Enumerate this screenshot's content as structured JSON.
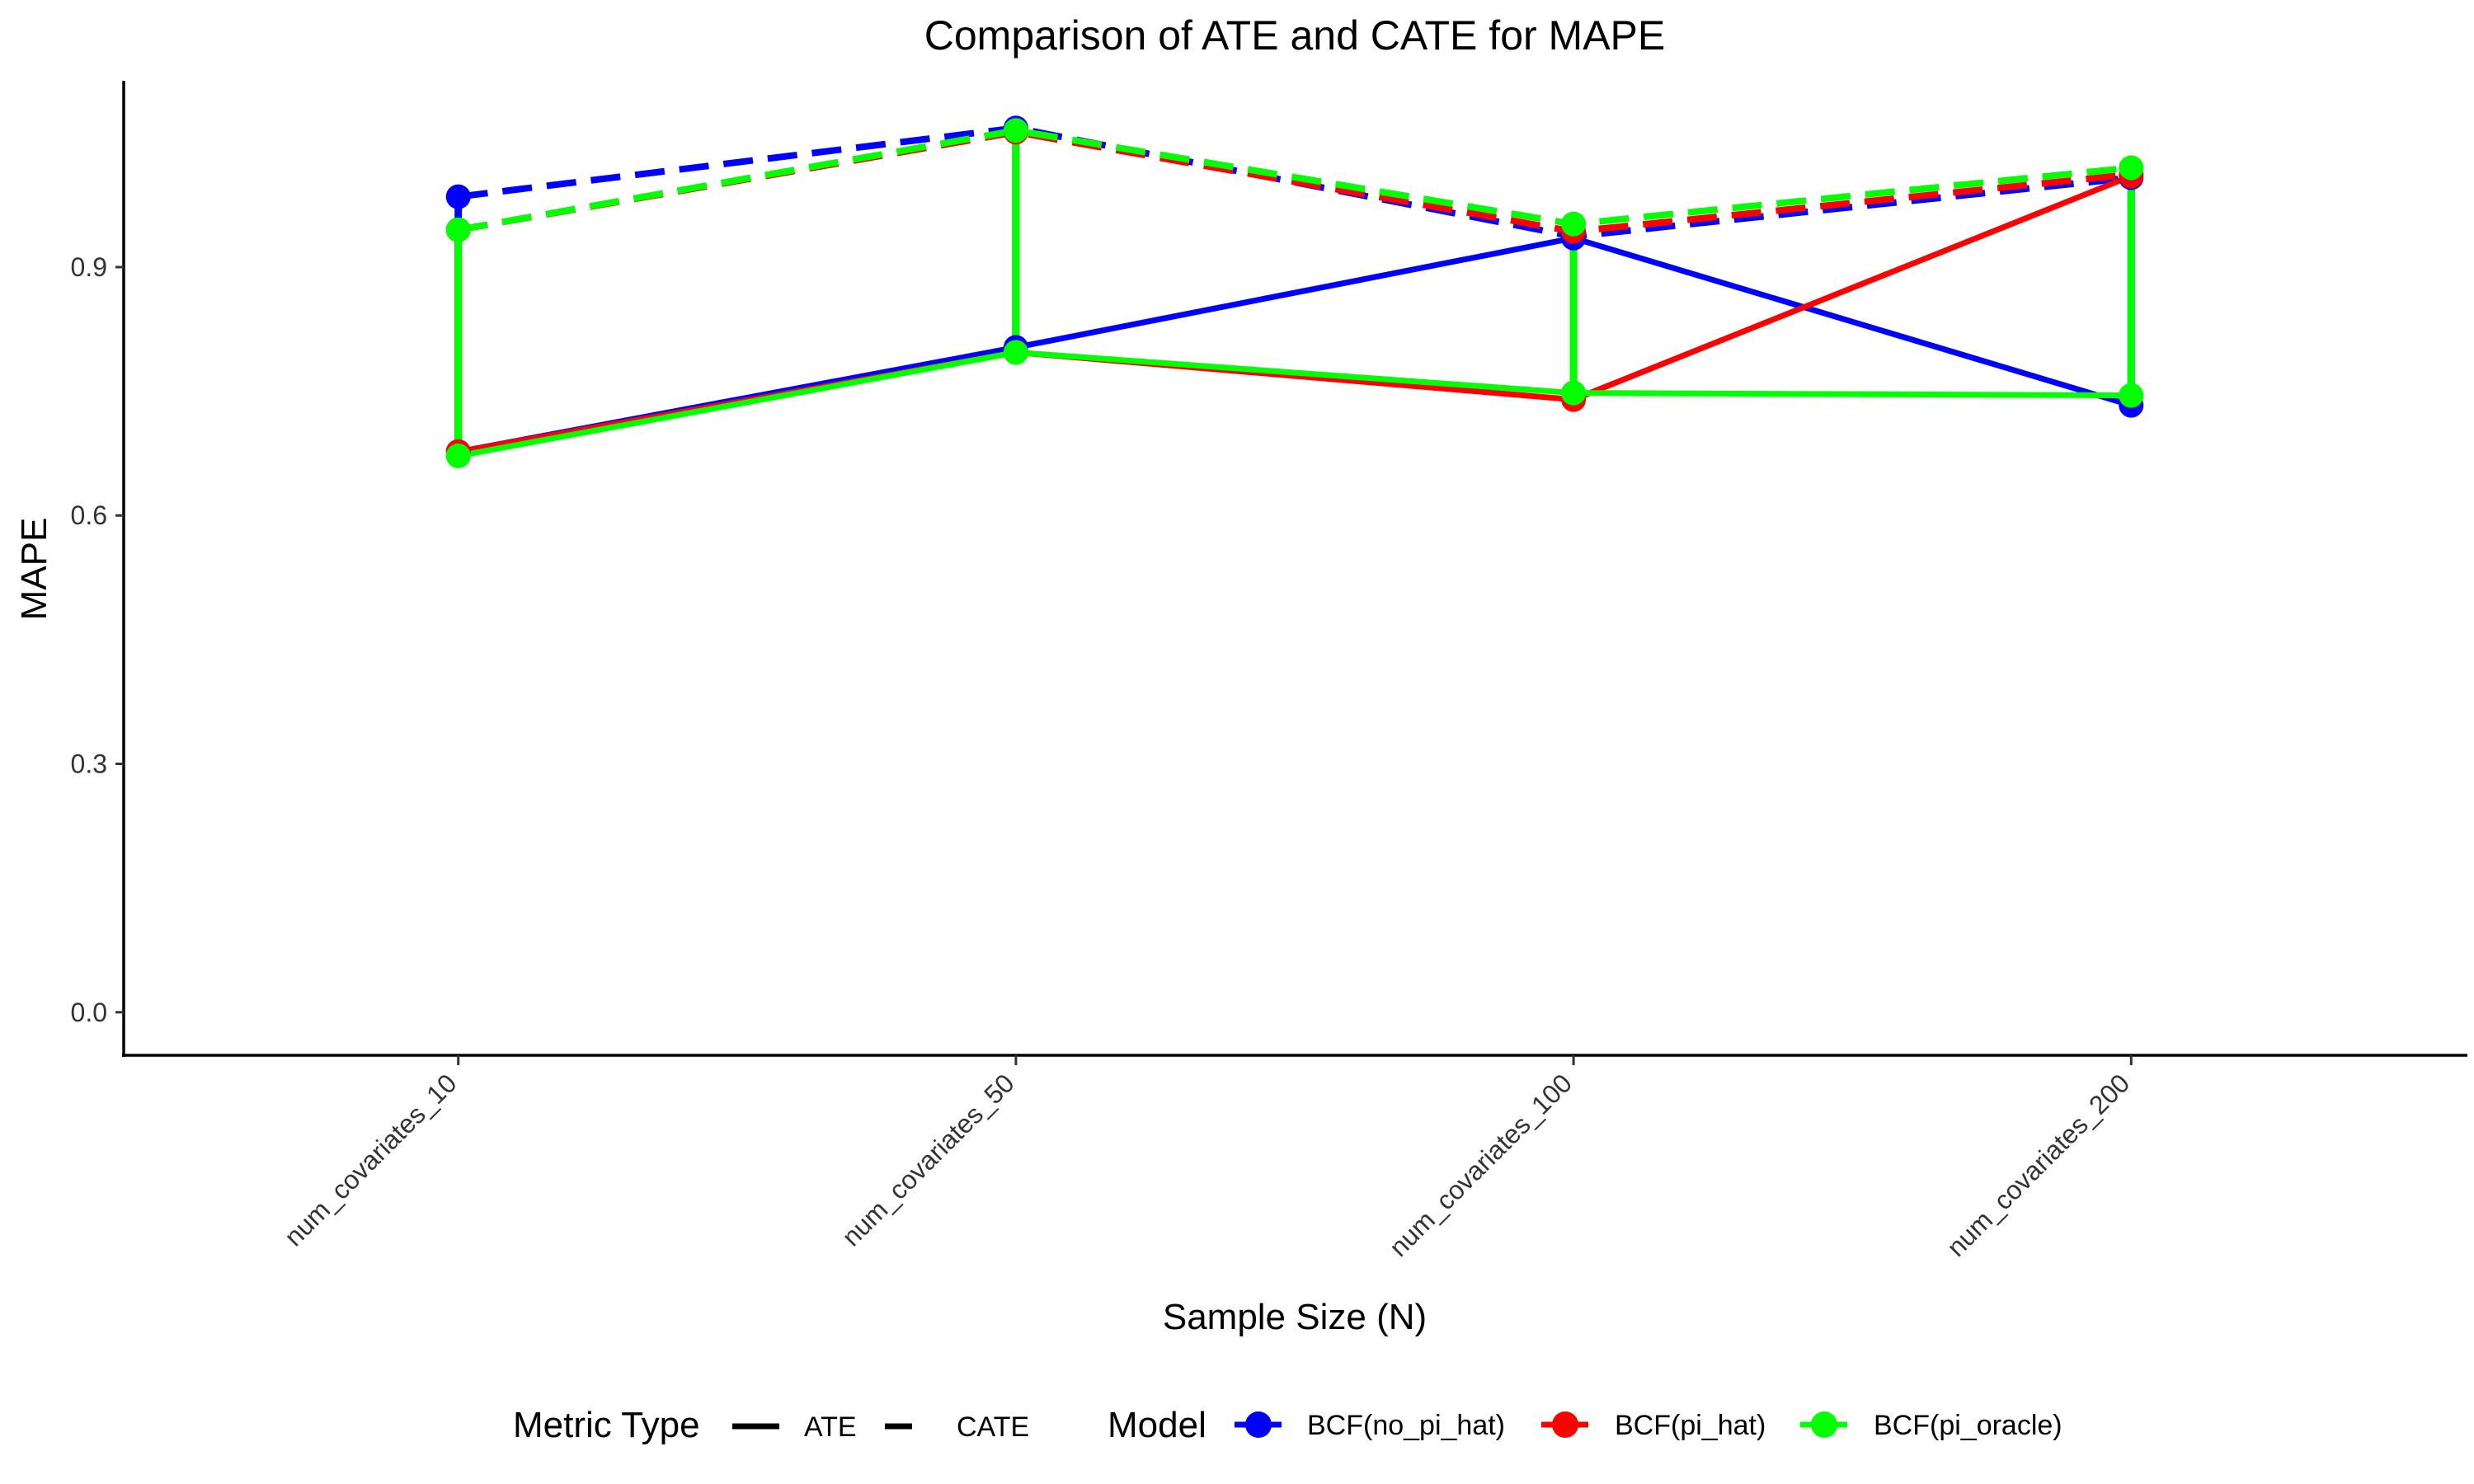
{
  "chart_data": {
    "type": "line",
    "title": "Comparison of ATE and CATE for MAPE",
    "xlabel": "Sample Size (N)",
    "ylabel": "MAPE",
    "categories": [
      "num_covariates_10",
      "num_covariates_50",
      "num_covariates_100",
      "num_covariates_200"
    ],
    "yticks": [
      "0.0",
      "0.3",
      "0.6",
      "0.9"
    ],
    "ytick_values": [
      0.0,
      0.3,
      0.6,
      0.9
    ],
    "ylim": [
      -0.052,
      1.125
    ],
    "grid": false,
    "legend_position": "bottom",
    "metric_legend": {
      "title": "Metric Type",
      "items": [
        {
          "label": "ATE",
          "dash": "solid"
        },
        {
          "label": "CATE",
          "dash": "dashed"
        }
      ]
    },
    "model_legend": {
      "title": "Model",
      "items": [
        {
          "label": "BCF(no_pi_hat)",
          "color": "#0000ff"
        },
        {
          "label": "BCF(pi_hat)",
          "color": "#ff0000"
        },
        {
          "label": "BCF(pi_oracle)",
          "color": "#00ff00"
        }
      ]
    },
    "series": [
      {
        "model": "BCF(no_pi_hat)",
        "metric": "ATE",
        "color": "#0000ff",
        "values": [
          0.677,
          0.803,
          0.935,
          0.733
        ]
      },
      {
        "model": "BCF(no_pi_hat)",
        "metric": "CATE",
        "color": "#0000ff",
        "values": [
          0.985,
          1.068,
          0.937,
          1.008
        ]
      },
      {
        "model": "BCF(pi_hat)",
        "metric": "ATE",
        "color": "#ff0000",
        "values": [
          0.677,
          0.797,
          0.74,
          1.01
        ]
      },
      {
        "model": "BCF(pi_hat)",
        "metric": "CATE",
        "color": "#ff0000",
        "values": [
          0.945,
          1.063,
          0.943,
          1.012
        ]
      },
      {
        "model": "BCF(pi_oracle)",
        "metric": "ATE",
        "color": "#00ff00",
        "values": [
          0.672,
          0.797,
          0.748,
          0.745
        ]
      },
      {
        "model": "BCF(pi_oracle)",
        "metric": "CATE",
        "color": "#00ff00",
        "values": [
          0.945,
          1.065,
          0.952,
          1.02
        ]
      }
    ]
  }
}
